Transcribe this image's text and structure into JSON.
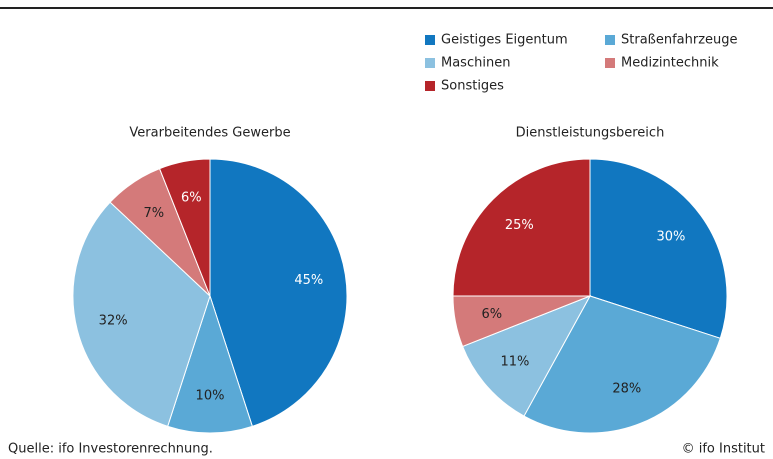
{
  "chart_data": [
    {
      "type": "pie",
      "title": "Verarbeitendes Gewerbe",
      "values": [
        45,
        10,
        32,
        7,
        6
      ],
      "value_labels": [
        "45%",
        "10%",
        "32%",
        "7%",
        "6%"
      ]
    },
    {
      "type": "pie",
      "title": "Dienstleistungsbereich",
      "values": [
        30,
        28,
        11,
        6,
        25
      ],
      "value_labels": [
        "30%",
        "28%",
        "11%",
        "6%",
        "25%"
      ]
    }
  ],
  "legend": {
    "labels": [
      "Geistiges Eigentum",
      "Straßenfahrzeuge",
      "Maschinen",
      "Medizintechnik",
      "Sonstiges"
    ],
    "colors": [
      "#1177c0",
      "#5aa9d6",
      "#8cc1e0",
      "#d47a7a",
      "#b5252a"
    ]
  },
  "source": "Quelle: ifo Investorenrechnung.",
  "copyright": "© ifo Institut"
}
